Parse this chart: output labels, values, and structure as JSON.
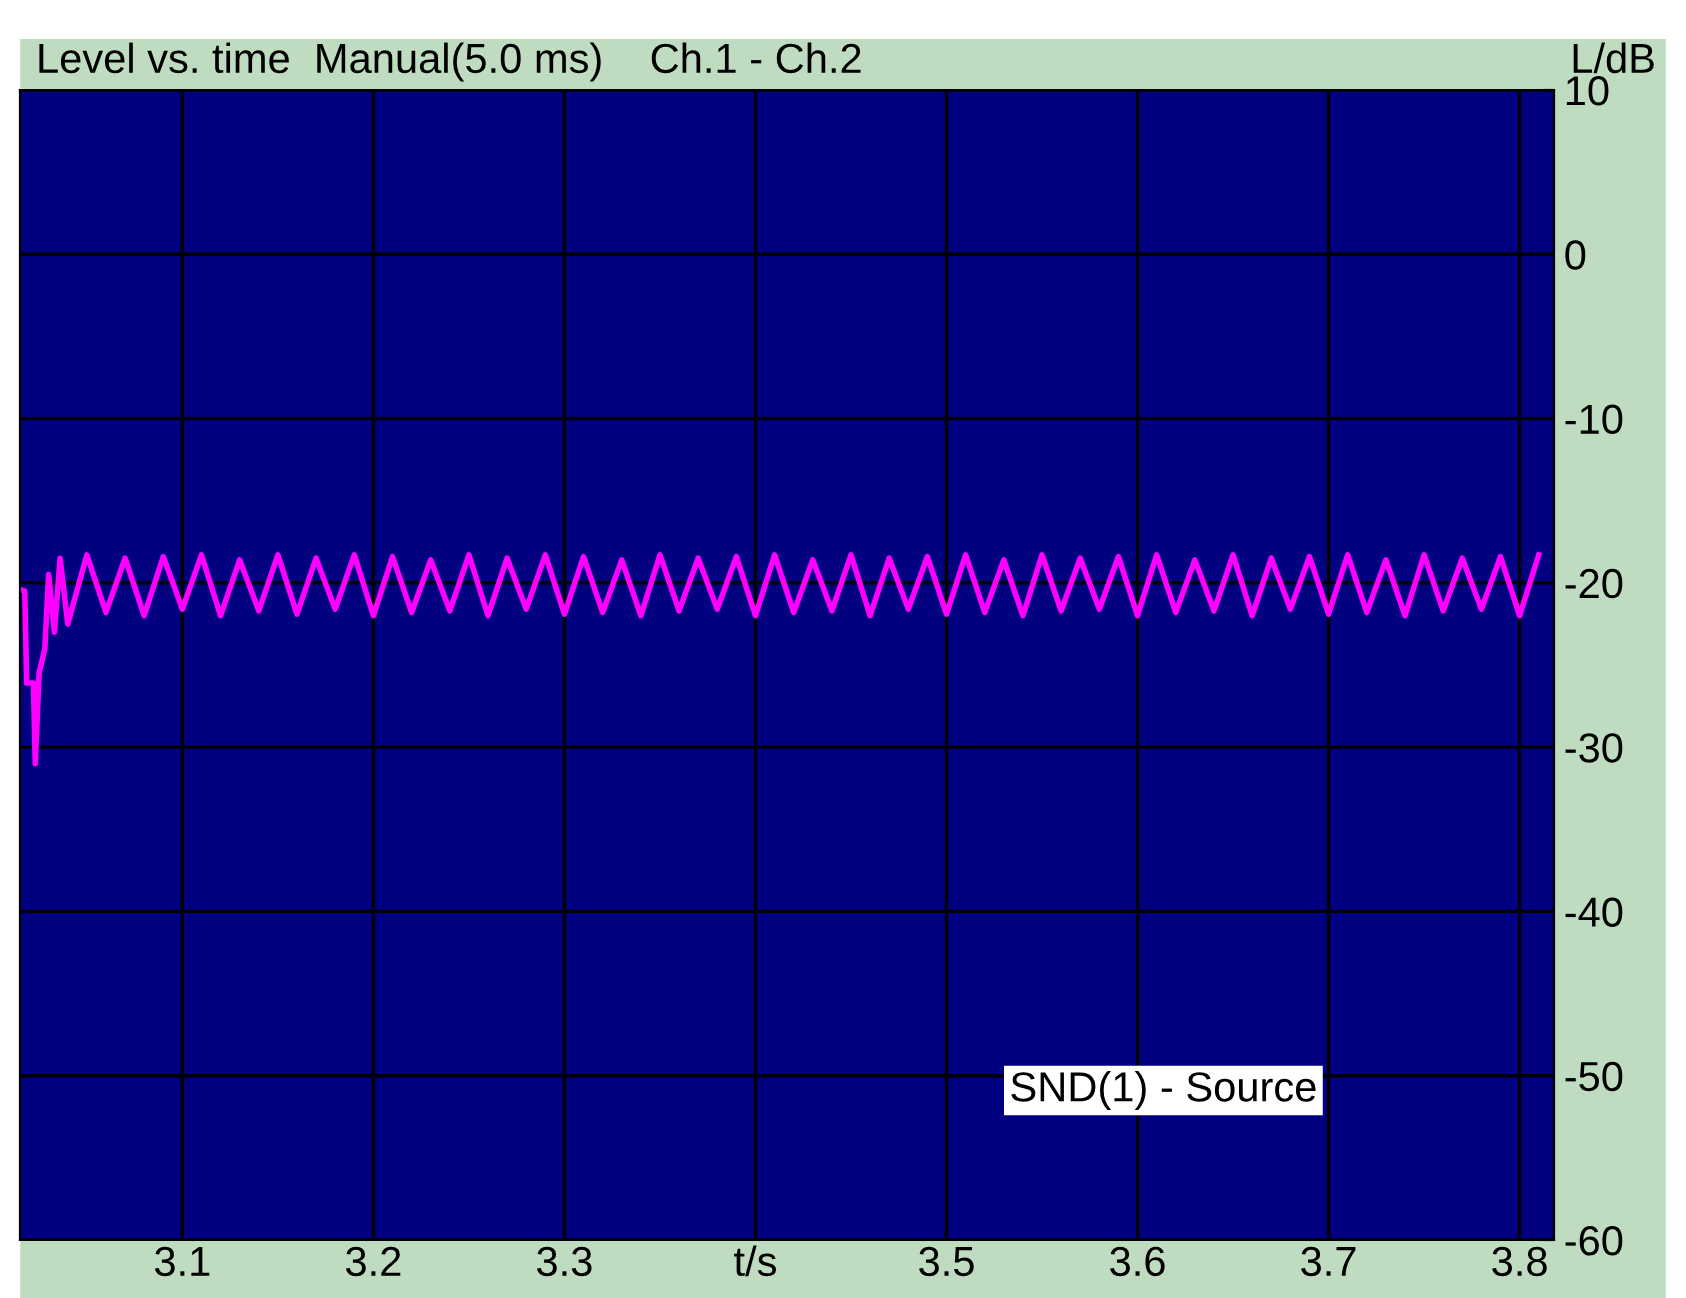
{
  "chart_data": {
    "type": "line",
    "title": "Level vs. time  Manual(5.0 ms)    Ch.1 - Ch.2",
    "ylabel": "L/dB",
    "annotations": [
      "SND(1) - Source"
    ],
    "x": [
      3.015,
      3.0175,
      3.0185,
      3.022,
      3.023,
      3.025,
      3.028,
      3.03,
      3.033,
      3.036,
      3.04,
      3.05,
      3.06,
      3.07,
      3.08,
      3.09,
      3.1,
      3.11,
      3.12,
      3.13,
      3.14,
      3.15,
      3.16,
      3.17,
      3.18,
      3.19,
      3.2,
      3.21,
      3.22,
      3.23,
      3.24,
      3.25,
      3.26,
      3.27,
      3.28,
      3.29,
      3.3,
      3.31,
      3.32,
      3.33,
      3.34,
      3.35,
      3.36,
      3.37,
      3.38,
      3.39,
      3.4,
      3.41,
      3.42,
      3.43,
      3.44,
      3.45,
      3.46,
      3.47,
      3.48,
      3.49,
      3.5,
      3.51,
      3.52,
      3.53,
      3.54,
      3.55,
      3.56,
      3.57,
      3.58,
      3.59,
      3.6,
      3.61,
      3.62,
      3.63,
      3.64,
      3.65,
      3.66,
      3.67,
      3.68,
      3.69,
      3.7,
      3.71,
      3.72,
      3.73,
      3.74,
      3.75,
      3.76,
      3.77,
      3.78,
      3.79,
      3.8,
      3.81
    ],
    "series": [
      {
        "color": "#ff00ff",
        "values": [
          -20.4,
          -20.5,
          -26.1,
          -26.1,
          -31,
          -25.5,
          -24,
          -19.5,
          -23,
          -18.5,
          -22.5,
          -18.3,
          -21.8,
          -18.5,
          -22,
          -18.4,
          -21.6,
          -18.3,
          -22,
          -18.6,
          -21.7,
          -18.3,
          -21.9,
          -18.5,
          -21.6,
          -18.3,
          -22,
          -18.4,
          -21.8,
          -18.6,
          -21.7,
          -18.3,
          -22,
          -18.5,
          -21.6,
          -18.3,
          -21.9,
          -18.4,
          -21.8,
          -18.6,
          -22,
          -18.3,
          -21.7,
          -18.5,
          -21.6,
          -18.4,
          -22,
          -18.3,
          -21.8,
          -18.6,
          -21.7,
          -18.3,
          -22,
          -18.5,
          -21.6,
          -18.4,
          -21.9,
          -18.3,
          -21.8,
          -18.6,
          -22,
          -18.3,
          -21.7,
          -18.5,
          -21.6,
          -18.4,
          -22,
          -18.3,
          -21.8,
          -18.6,
          -21.7,
          -18.3,
          -22,
          -18.5,
          -21.6,
          -18.4,
          -21.9,
          -18.3,
          -21.8,
          -18.6,
          -22,
          -18.3,
          -21.7,
          -18.5,
          -21.6,
          -18.4,
          -22,
          -18.3
        ]
      }
    ],
    "xlim": [
      3.015,
      3.818
    ],
    "ylim": [
      -60,
      10
    ],
    "xticks": [
      3.1,
      3.2,
      3.3,
      {
        "value": 3.4,
        "label": "t/s"
      },
      3.5,
      3.6,
      3.7,
      3.8
    ],
    "yticks": [
      10,
      0,
      -10,
      -20,
      -30,
      -40,
      -50,
      -60
    ],
    "grid": true,
    "legend": false,
    "marker": "none",
    "line_style": "solid"
  }
}
